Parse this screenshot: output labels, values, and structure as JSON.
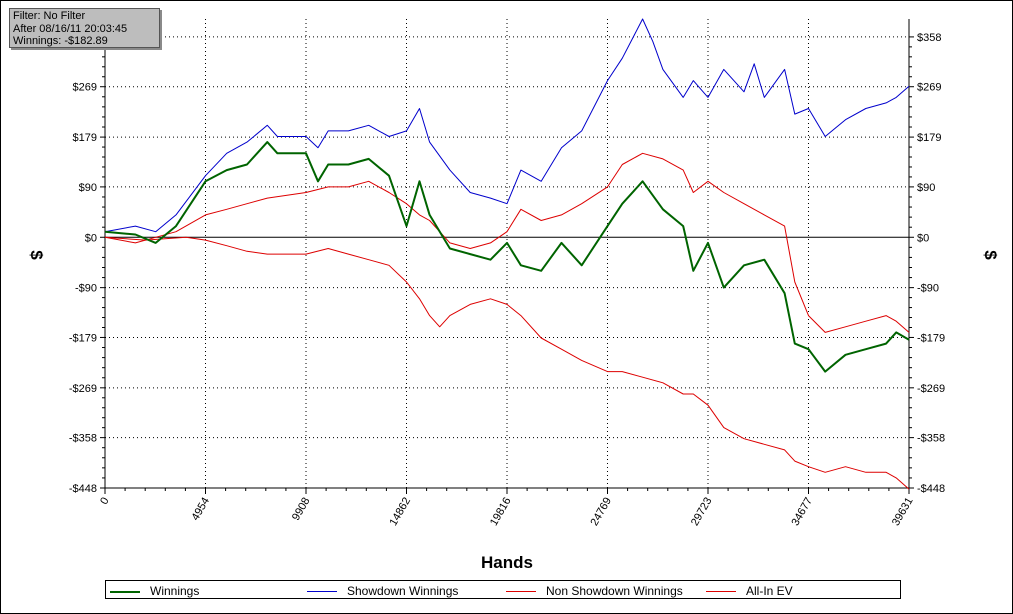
{
  "filter_box": {
    "filter": "Filter: No Filter",
    "after": "After 08/16/11 20:03:45",
    "winnings": "Winnings: -$182.89"
  },
  "chart_data": {
    "type": "line",
    "xlabel": "Hands",
    "ylabel": "$",
    "xlim": [
      0,
      39631
    ],
    "ylim": [
      -448,
      390
    ],
    "x_ticks": [
      0,
      4954,
      9908,
      14862,
      19816,
      24769,
      29723,
      34677,
      39631
    ],
    "y_ticks": [
      {
        "value": 358,
        "label": "$358"
      },
      {
        "value": 269,
        "label": "$269"
      },
      {
        "value": 179,
        "label": "$179"
      },
      {
        "value": 90,
        "label": "$90"
      },
      {
        "value": 0,
        "label": "$0"
      },
      {
        "value": -90,
        "label": "-$90"
      },
      {
        "value": -179,
        "label": "-$179"
      },
      {
        "value": -269,
        "label": "-$269"
      },
      {
        "value": -358,
        "label": "-$358"
      },
      {
        "value": -448,
        "label": "-$448"
      }
    ],
    "grid": true,
    "legend": "bottom",
    "series": [
      {
        "name": "Winnings",
        "color": "#006400",
        "x": [
          0,
          1500,
          2500,
          3500,
          4954,
          6000,
          7000,
          8000,
          8500,
          9908,
          10500,
          11000,
          12000,
          13000,
          14000,
          14862,
          15500,
          16000,
          17000,
          18000,
          19000,
          19816,
          20500,
          21500,
          22500,
          23500,
          24769,
          25500,
          26500,
          27500,
          28500,
          29000,
          29723,
          30500,
          31500,
          32500,
          33500,
          34000,
          34677,
          35500,
          36500,
          37500,
          38500,
          39000,
          39631
        ],
        "values": [
          10,
          5,
          -10,
          20,
          100,
          120,
          130,
          170,
          150,
          150,
          100,
          130,
          130,
          140,
          110,
          20,
          100,
          40,
          -20,
          -30,
          -40,
          -10,
          -50,
          -60,
          -10,
          -50,
          20,
          60,
          100,
          50,
          20,
          -60,
          -10,
          -90,
          -50,
          -40,
          -100,
          -190,
          -200,
          -240,
          -210,
          -200,
          -190,
          -170,
          -183
        ]
      },
      {
        "name": "Showdown Winnings",
        "color": "#0000cc",
        "x": [
          0,
          1500,
          2500,
          3500,
          4954,
          6000,
          7000,
          8000,
          8500,
          9908,
          10500,
          11000,
          12000,
          13000,
          14000,
          14862,
          15500,
          16000,
          17000,
          18000,
          19000,
          19816,
          20500,
          21500,
          22500,
          23500,
          24769,
          25500,
          26500,
          27000,
          27500,
          28500,
          29000,
          29723,
          30500,
          31500,
          32000,
          32500,
          33500,
          34000,
          34677,
          35500,
          36500,
          37500,
          38500,
          39000,
          39631
        ],
        "values": [
          10,
          20,
          10,
          40,
          110,
          150,
          170,
          200,
          180,
          180,
          160,
          190,
          190,
          200,
          180,
          190,
          230,
          170,
          120,
          80,
          70,
          60,
          120,
          100,
          160,
          190,
          280,
          320,
          390,
          350,
          300,
          250,
          280,
          250,
          300,
          260,
          310,
          250,
          300,
          220,
          230,
          180,
          210,
          230,
          240,
          250,
          270
        ]
      },
      {
        "name": "Non Showdown Winnings",
        "color": "#dd0000",
        "x": [
          0,
          1500,
          2500,
          3500,
          4954,
          6000,
          7000,
          8000,
          9908,
          11000,
          12000,
          13000,
          14000,
          14862,
          15500,
          16000,
          17000,
          18000,
          19000,
          19816,
          20500,
          21500,
          22500,
          23500,
          24769,
          25500,
          26500,
          27500,
          28500,
          29000,
          29723,
          30500,
          31500,
          32500,
          33500,
          34000,
          34677,
          35500,
          36500,
          37500,
          38500,
          39000,
          39631
        ],
        "values": [
          0,
          -10,
          0,
          10,
          40,
          50,
          60,
          70,
          80,
          90,
          90,
          100,
          80,
          60,
          40,
          30,
          -10,
          -20,
          -10,
          10,
          50,
          30,
          40,
          60,
          90,
          130,
          150,
          140,
          120,
          80,
          100,
          80,
          60,
          40,
          20,
          -80,
          -140,
          -170,
          -160,
          -150,
          -140,
          -150,
          -170
        ]
      },
      {
        "name": "All-In EV",
        "color": "#dd0000",
        "x": [
          0,
          2000,
          4000,
          4954,
          6000,
          7000,
          8000,
          9908,
          11000,
          12000,
          13000,
          14000,
          14862,
          15500,
          16000,
          16500,
          17000,
          18000,
          19000,
          19816,
          20500,
          21500,
          22500,
          23500,
          24769,
          25500,
          26500,
          27500,
          28500,
          29000,
          29723,
          30500,
          31500,
          32500,
          33500,
          34000,
          34677,
          35500,
          36500,
          37500,
          38500,
          39000,
          39631
        ],
        "values": [
          0,
          -5,
          0,
          -5,
          -15,
          -25,
          -30,
          -30,
          -20,
          -30,
          -40,
          -50,
          -80,
          -110,
          -140,
          -160,
          -140,
          -120,
          -110,
          -120,
          -140,
          -180,
          -200,
          -220,
          -240,
          -240,
          -250,
          -260,
          -280,
          -280,
          -300,
          -340,
          -360,
          -370,
          -380,
          -400,
          -410,
          -420,
          -410,
          -420,
          -420,
          -430,
          -450
        ]
      }
    ]
  }
}
